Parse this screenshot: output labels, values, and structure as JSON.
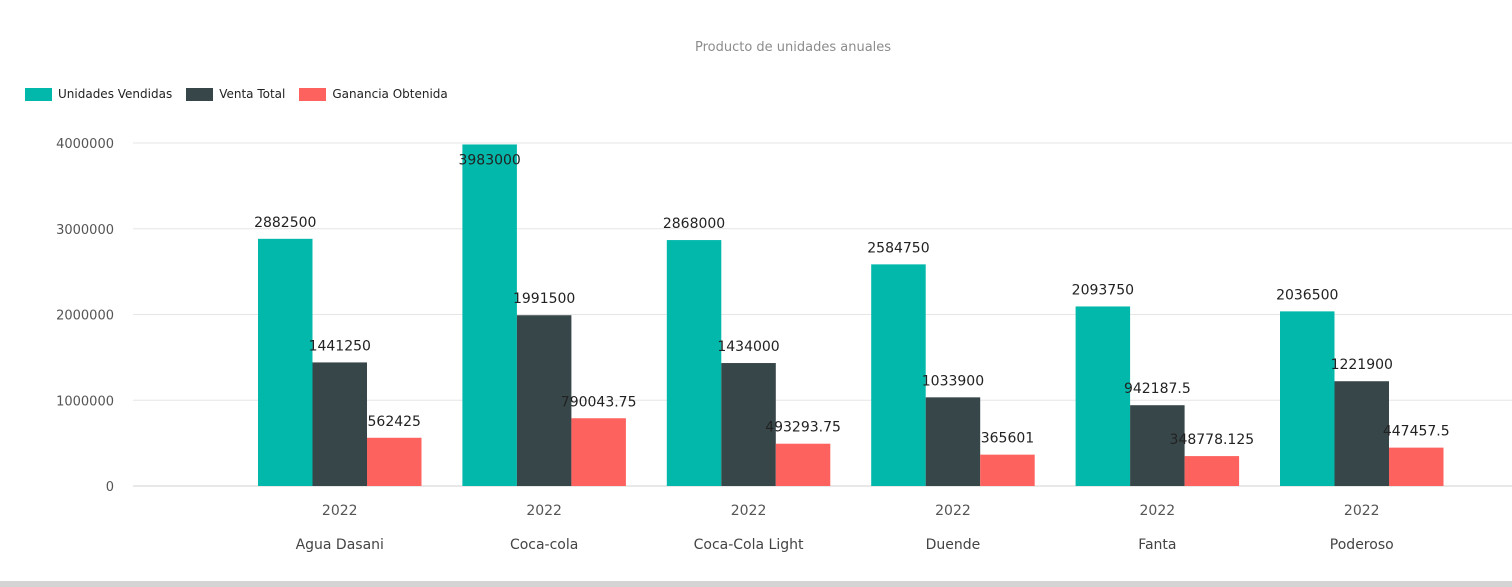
{
  "chart_data": {
    "type": "bar",
    "title": "Producto de unidades anuales",
    "xlabel": "",
    "ylabel": "",
    "ylim": [
      0,
      4000000
    ],
    "yticks": [
      "0",
      "1000000",
      "2000000",
      "3000000",
      "4000000"
    ],
    "categories": [
      "Agua Dasani",
      "Coca-cola",
      "Coca-Cola Light",
      "Duende",
      "Fanta",
      "Poderoso"
    ],
    "subcategories": [
      "2022",
      "2022",
      "2022",
      "2022",
      "2022",
      "2022"
    ],
    "legend_position": "top-left",
    "grid": true,
    "series": [
      {
        "name": "Unidades Vendidas",
        "color": "#01b8aa",
        "values": [
          2882500,
          3983000,
          2868000,
          2584750,
          2093750,
          2036500
        ],
        "labels": [
          "2882500",
          "3983000",
          "2868000",
          "2584750",
          "2093750",
          "2036500"
        ]
      },
      {
        "name": "Venta Total",
        "color": "#374649",
        "values": [
          1441250,
          1991500,
          1434000,
          1033900,
          942187.5,
          1221900
        ],
        "labels": [
          "1441250",
          "1991500",
          "1434000",
          "1033900",
          "942187.5",
          "1221900"
        ]
      },
      {
        "name": "Ganancia Obtenida",
        "color": "#fd625e",
        "values": [
          562425,
          790043.75,
          493293.75,
          365601,
          348778.125,
          447457.5
        ],
        "labels": [
          "562425",
          "790043.75",
          "493293.75",
          "365601",
          "348778.125",
          "447457.5"
        ]
      }
    ]
  }
}
